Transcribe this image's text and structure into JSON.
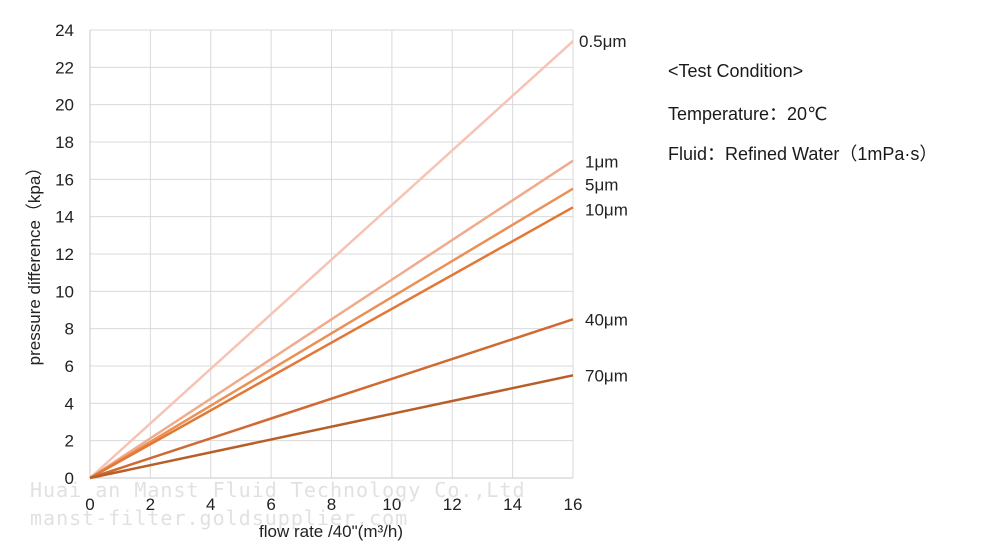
{
  "chart_data": {
    "type": "line",
    "title": "",
    "xlabel": "flow rate /40\"(m³/h)",
    "ylabel": "pressure difference（kpa）",
    "xlim": [
      0,
      16
    ],
    "ylim": [
      0,
      24
    ],
    "x_ticks": [
      "0",
      "2",
      "4",
      "6",
      "8",
      "10",
      "12",
      "14",
      "16"
    ],
    "y_ticks": [
      "0",
      "2",
      "4",
      "6",
      "8",
      "10",
      "12",
      "14",
      "16",
      "18",
      "20",
      "22",
      "24"
    ],
    "grid": true,
    "legend": "line-end labels (right)",
    "series": [
      {
        "name": "0.5μm",
        "x": [
          0,
          16
        ],
        "y": [
          0,
          23.4
        ],
        "color": "#f6c4b4"
      },
      {
        "name": "1μm",
        "x": [
          0,
          16
        ],
        "y": [
          0,
          17.0
        ],
        "color": "#f0ab8c"
      },
      {
        "name": "5μm",
        "x": [
          0,
          16
        ],
        "y": [
          0,
          15.5
        ],
        "color": "#ec9055"
      },
      {
        "name": "10μm",
        "x": [
          0,
          16
        ],
        "y": [
          0,
          14.5
        ],
        "color": "#e27836"
      },
      {
        "name": "40μm",
        "x": [
          0,
          16
        ],
        "y": [
          0,
          8.5
        ],
        "color": "#d06a32"
      },
      {
        "name": "70μm",
        "x": [
          0,
          16
        ],
        "y": [
          0,
          5.5
        ],
        "color": "#b85f28"
      }
    ]
  },
  "test_condition": {
    "heading": "<Test Condition>",
    "temperature": "Temperature：20℃",
    "fluid": "Fluid：Refined Water（1mPa·s）"
  },
  "watermark": {
    "line1": "Huai an Manst Fluid Technology Co.,Ltd",
    "line2": "manst-filter.goldsupplier.com"
  }
}
